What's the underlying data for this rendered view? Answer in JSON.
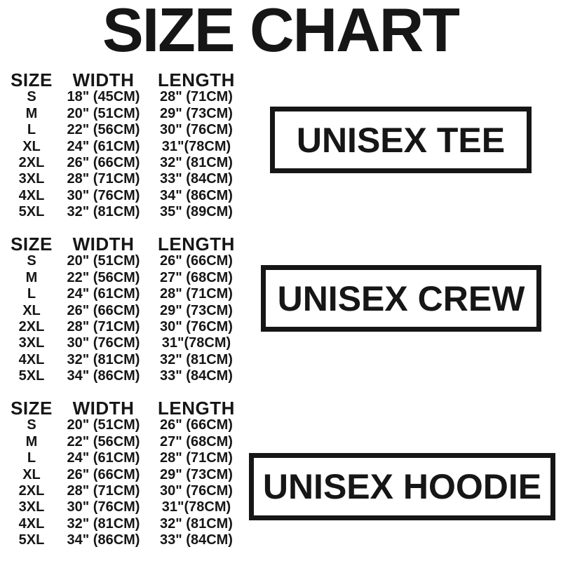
{
  "title": "SIZE CHART",
  "colors": {
    "ink": "#161616",
    "background": "#ffffff"
  },
  "chart_data": [
    {
      "type": "table",
      "product": "UNISEX TEE",
      "columns": [
        "SIZE",
        "WIDTH",
        "LENGTH"
      ],
      "rows": [
        [
          "S",
          "18\" (45CM)",
          "28\" (71CM)"
        ],
        [
          "M",
          "20\" (51CM)",
          "29\" (73CM)"
        ],
        [
          "L",
          "22\" (56CM)",
          "30\" (76CM)"
        ],
        [
          "XL",
          "24\" (61CM)",
          "31\"(78CM)"
        ],
        [
          "2XL",
          "26\" (66CM)",
          "32\" (81CM)"
        ],
        [
          "3XL",
          "28\" (71CM)",
          "33\" (84CM)"
        ],
        [
          "4XL",
          "30\" (76CM)",
          "34\" (86CM)"
        ],
        [
          "5XL",
          "32\" (81CM)",
          "35\" (89CM)"
        ]
      ]
    },
    {
      "type": "table",
      "product": "UNISEX CREW",
      "columns": [
        "SIZE",
        "WIDTH",
        "LENGTH"
      ],
      "rows": [
        [
          "S",
          "20\" (51CM)",
          "26\" (66CM)"
        ],
        [
          "M",
          "22\" (56CM)",
          "27\" (68CM)"
        ],
        [
          "L",
          "24\" (61CM)",
          "28\" (71CM)"
        ],
        [
          "XL",
          "26\" (66CM)",
          "29\" (73CM)"
        ],
        [
          "2XL",
          "28\" (71CM)",
          "30\" (76CM)"
        ],
        [
          "3XL",
          "30\" (76CM)",
          "31\"(78CM)"
        ],
        [
          "4XL",
          "32\" (81CM)",
          "32\" (81CM)"
        ],
        [
          "5XL",
          "34\" (86CM)",
          "33\" (84CM)"
        ]
      ]
    },
    {
      "type": "table",
      "product": "UNISEX HOODIE",
      "columns": [
        "SIZE",
        "WIDTH",
        "LENGTH"
      ],
      "rows": [
        [
          "S",
          "20\" (51CM)",
          "26\" (66CM)"
        ],
        [
          "M",
          "22\" (56CM)",
          "27\" (68CM)"
        ],
        [
          "L",
          "24\" (61CM)",
          "28\" (71CM)"
        ],
        [
          "XL",
          "26\" (66CM)",
          "29\" (73CM)"
        ],
        [
          "2XL",
          "28\" (71CM)",
          "30\" (76CM)"
        ],
        [
          "3XL",
          "30\" (76CM)",
          "31\"(78CM)"
        ],
        [
          "4XL",
          "32\" (81CM)",
          "32\" (81CM)"
        ],
        [
          "5XL",
          "34\" (86CM)",
          "33\" (84CM)"
        ]
      ]
    }
  ]
}
